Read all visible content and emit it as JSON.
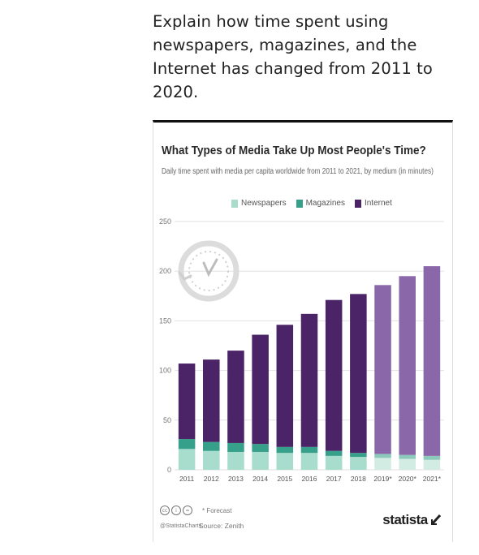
{
  "question": "Explain how time spent using newspapers, magazines, and the Internet has changed from 2011 to 2020.",
  "footer": {
    "forecast_note": "* Forecast",
    "handle": "@StatistaCharts",
    "source": "Source: Zenith",
    "brand": "statista"
  },
  "colors": {
    "newspapers": "#a8dccd",
    "magazines": "#36a08a",
    "internet": "#4a2466",
    "internet_forecast": "#8a67a8",
    "newspapers_forecast": "#d2ece4",
    "magazines_forecast": "#8cc9ba"
  },
  "icons": {
    "clock": "clock-icon",
    "brand_logo": "statista-logo-icon",
    "license": "creative-commons-icon"
  },
  "chart_data": {
    "type": "bar",
    "stacked": true,
    "title": "What Types of Media Take Up Most People's Time?",
    "subtitle": "Daily time spent with media per capita worldwide from 2011 to 2021, by medium (in minutes)",
    "categories": [
      "2011",
      "2012",
      "2013",
      "2014",
      "2015",
      "2016",
      "2017",
      "2018",
      "2019*",
      "2020*",
      "2021*"
    ],
    "forecast_categories": [
      "2019*",
      "2020*",
      "2021*"
    ],
    "series": [
      {
        "name": "Newspapers",
        "values": [
          21,
          19,
          18,
          18,
          17,
          17,
          14,
          13,
          12,
          11,
          10
        ]
      },
      {
        "name": "Magazines",
        "values": [
          10,
          9,
          9,
          8,
          6,
          6,
          5,
          4,
          4,
          4,
          4
        ]
      },
      {
        "name": "Internet",
        "values": [
          76,
          83,
          93,
          110,
          123,
          134,
          152,
          160,
          170,
          180,
          191
        ]
      }
    ],
    "ylim": [
      0,
      250
    ],
    "yticks": [
      "0",
      "50",
      "100",
      "150",
      "200",
      "250"
    ],
    "grid": true,
    "legend_position": "top"
  }
}
